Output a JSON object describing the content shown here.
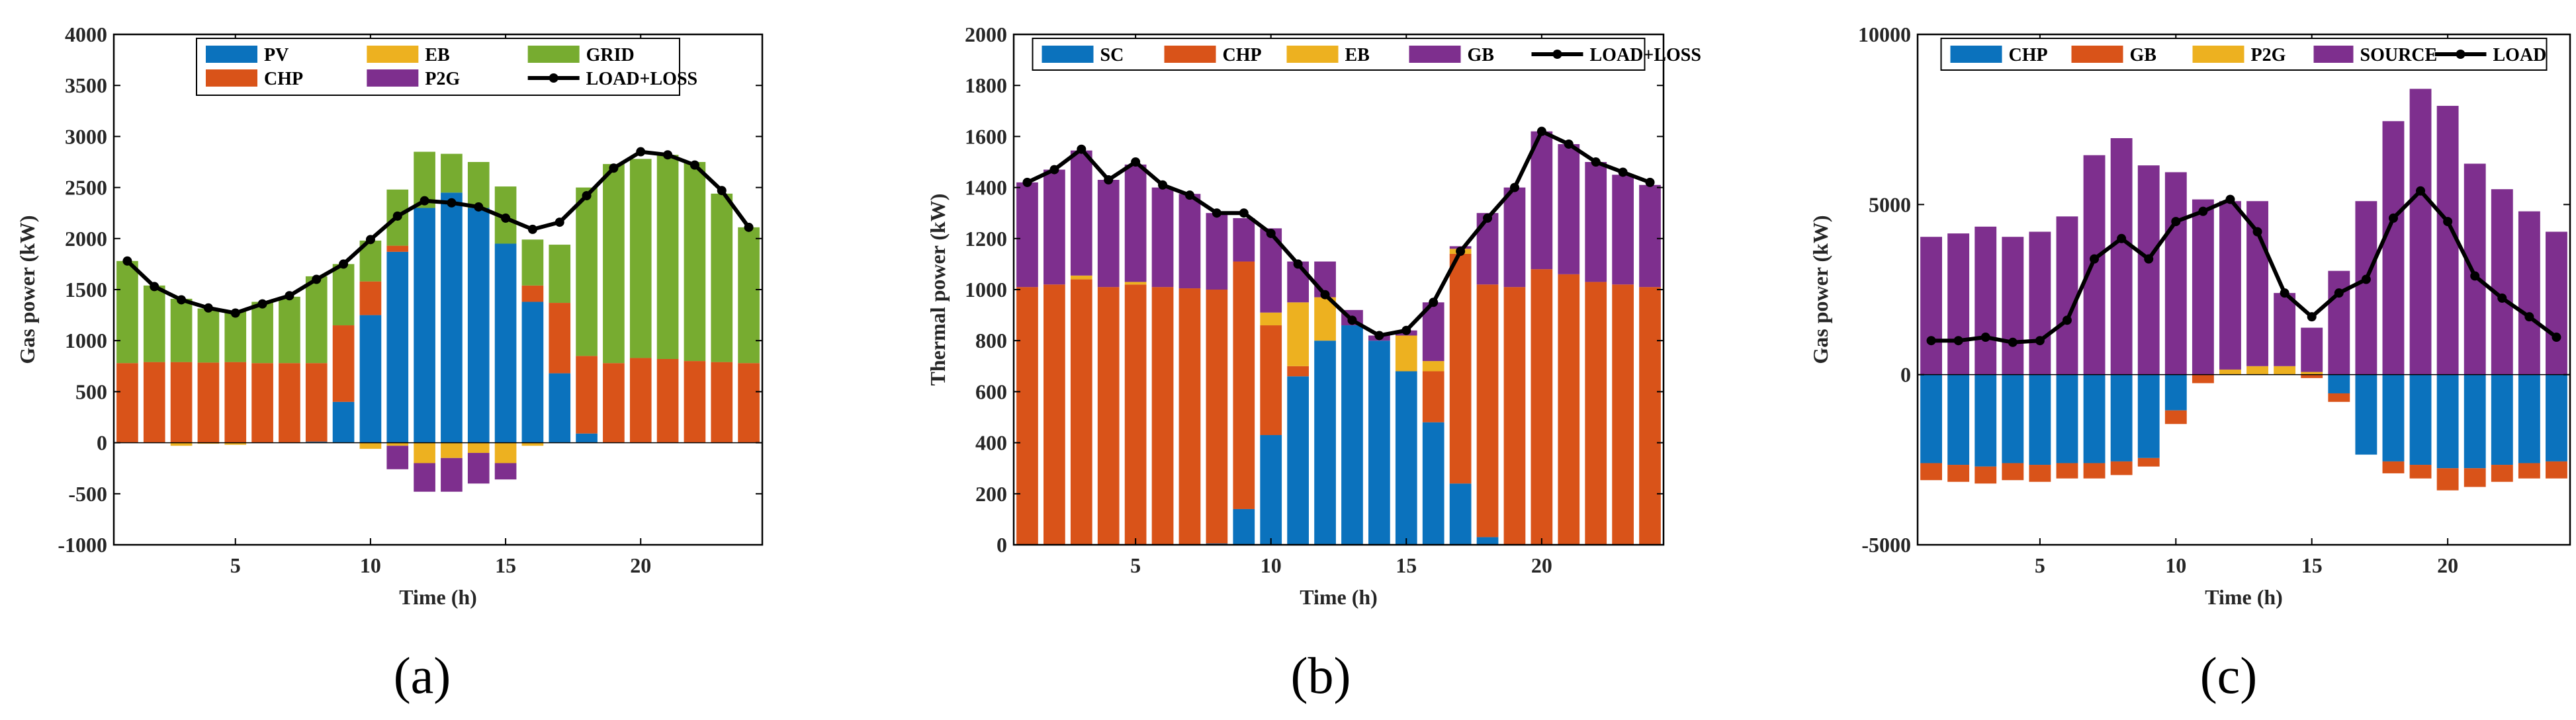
{
  "colors": {
    "PV": "#0b72bd",
    "SC": "#0b72bd",
    "CHP": "#d95319",
    "EB": "#edb120",
    "GRID": "#77ac30",
    "P2G": "#7e2f8e",
    "GB": "#7e2f8e",
    "SOURCE": "#7e2f8e",
    "CHP_c": "#0b72bd",
    "GB_c": "#d95319",
    "P2G_c": "#edb120",
    "line": "#000000"
  },
  "chart_data": [
    {
      "type": "bar",
      "stacked": true,
      "panel_label": "(a)",
      "xlabel": "Time (h)",
      "ylabel": "Gas power (kW)",
      "ylim": [
        -1000,
        4000
      ],
      "yticks": [
        -1000,
        -500,
        0,
        500,
        1000,
        1500,
        2000,
        2500,
        3000,
        3500,
        4000
      ],
      "xticks": [
        5,
        10,
        15,
        20
      ],
      "x": [
        1,
        2,
        3,
        4,
        5,
        6,
        7,
        8,
        9,
        10,
        11,
        12,
        13,
        14,
        15,
        16,
        17,
        18,
        19,
        20,
        21,
        22,
        23,
        24
      ],
      "series": [
        {
          "name": "PV",
          "color_key": "PV",
          "values": [
            0,
            0,
            0,
            0,
            0,
            0,
            0,
            10,
            400,
            1250,
            1870,
            2300,
            2450,
            2300,
            1950,
            1380,
            680,
            90,
            0,
            0,
            0,
            0,
            0,
            0
          ]
        },
        {
          "name": "CHP",
          "color_key": "CHP",
          "values": [
            780,
            790,
            790,
            785,
            790,
            780,
            780,
            770,
            750,
            330,
            60,
            0,
            0,
            0,
            0,
            160,
            690,
            760,
            780,
            830,
            820,
            800,
            790,
            780
          ]
        },
        {
          "name": "EB",
          "color_key": "EB",
          "values": [
            0,
            0,
            -30,
            -10,
            -20,
            0,
            0,
            0,
            0,
            -60,
            -30,
            -200,
            -150,
            -100,
            -200,
            -30,
            0,
            0,
            0,
            0,
            0,
            0,
            0,
            0
          ]
        },
        {
          "name": "GRID",
          "color_key": "GRID",
          "values": [
            1000,
            750,
            620,
            530,
            500,
            600,
            650,
            850,
            600,
            400,
            550,
            550,
            380,
            450,
            560,
            450,
            570,
            1650,
            1950,
            1950,
            2000,
            1950,
            1650,
            1330
          ]
        },
        {
          "name": "P2G",
          "color_key": "P2G",
          "values": [
            0,
            0,
            0,
            0,
            0,
            0,
            0,
            0,
            0,
            0,
            -230,
            -280,
            -330,
            -300,
            -160,
            0,
            0,
            0,
            0,
            0,
            0,
            0,
            0,
            0
          ]
        }
      ],
      "line": {
        "name": "LOAD+LOSS",
        "values": [
          1780,
          1530,
          1400,
          1320,
          1270,
          1360,
          1440,
          1600,
          1750,
          1990,
          2220,
          2370,
          2350,
          2310,
          2200,
          2090,
          2160,
          2420,
          2690,
          2850,
          2820,
          2720,
          2470,
          2110
        ]
      },
      "legend": [
        {
          "label": "PV",
          "kind": "bar",
          "color_key": "PV"
        },
        {
          "label": "EB",
          "kind": "bar",
          "color_key": "EB"
        },
        {
          "label": "GRID",
          "kind": "bar",
          "color_key": "GRID"
        },
        {
          "label": "CHP",
          "kind": "bar",
          "color_key": "CHP"
        },
        {
          "label": "P2G",
          "kind": "bar",
          "color_key": "P2G"
        },
        {
          "label": "LOAD+LOSS",
          "kind": "line"
        }
      ],
      "legend_position": "top-center",
      "legend_columns": 3
    },
    {
      "type": "bar",
      "stacked": true,
      "panel_label": "(b)",
      "xlabel": "Time (h)",
      "ylabel": "Thermal power (kW)",
      "ylim": [
        0,
        2000
      ],
      "yticks": [
        0,
        200,
        400,
        600,
        800,
        1000,
        1200,
        1400,
        1600,
        1800,
        2000
      ],
      "xticks": [
        5,
        10,
        15,
        20
      ],
      "x": [
        1,
        2,
        3,
        4,
        5,
        6,
        7,
        8,
        9,
        10,
        11,
        12,
        13,
        14,
        15,
        16,
        17,
        18,
        19,
        20,
        21,
        22,
        23,
        24
      ],
      "series": [
        {
          "name": "SC",
          "color_key": "SC",
          "values": [
            0,
            0,
            0,
            0,
            0,
            0,
            0,
            5,
            140,
            430,
            660,
            800,
            860,
            800,
            680,
            480,
            240,
            30,
            0,
            0,
            0,
            0,
            0,
            0
          ]
        },
        {
          "name": "CHP",
          "color_key": "CHP",
          "values": [
            1010,
            1020,
            1040,
            1010,
            1020,
            1010,
            1005,
            995,
            970,
            430,
            40,
            0,
            0,
            0,
            0,
            200,
            900,
            990,
            1010,
            1080,
            1060,
            1030,
            1020,
            1010
          ]
        },
        {
          "name": "EB",
          "color_key": "EB",
          "values": [
            0,
            0,
            15,
            0,
            10,
            0,
            0,
            0,
            0,
            50,
            250,
            170,
            0,
            0,
            140,
            40,
            20,
            0,
            0,
            0,
            0,
            0,
            0,
            0
          ]
        },
        {
          "name": "GB",
          "color_key": "GB",
          "values": [
            410,
            450,
            490,
            420,
            460,
            390,
            370,
            300,
            170,
            330,
            160,
            140,
            60,
            20,
            20,
            230,
            10,
            280,
            390,
            540,
            510,
            470,
            430,
            400
          ]
        }
      ],
      "line": {
        "name": "LOAD+LOSS",
        "values": [
          1420,
          1470,
          1550,
          1430,
          1500,
          1410,
          1370,
          1300,
          1300,
          1220,
          1100,
          980,
          880,
          820,
          840,
          950,
          1150,
          1280,
          1400,
          1620,
          1570,
          1500,
          1460,
          1420
        ]
      },
      "legend": [
        {
          "label": "SC",
          "kind": "bar",
          "color_key": "SC"
        },
        {
          "label": "CHP",
          "kind": "bar",
          "color_key": "CHP"
        },
        {
          "label": "EB",
          "kind": "bar",
          "color_key": "EB"
        },
        {
          "label": "GB",
          "kind": "bar",
          "color_key": "GB"
        },
        {
          "label": "LOAD+LOSS",
          "kind": "line"
        }
      ],
      "legend_position": "top-center",
      "legend_columns": 5
    },
    {
      "type": "bar",
      "stacked": true,
      "panel_label": "(c)",
      "xlabel": "Time (h)",
      "ylabel": "Gas power (kW)",
      "ylim": [
        -5000,
        10000
      ],
      "yticks": [
        -5000,
        0,
        5000,
        10000
      ],
      "xticks": [
        5,
        10,
        15,
        20
      ],
      "x": [
        1,
        2,
        3,
        4,
        5,
        6,
        7,
        8,
        9,
        10,
        11,
        12,
        13,
        14,
        15,
        16,
        17,
        18,
        19,
        20,
        21,
        22,
        23,
        24
      ],
      "series": [
        {
          "name": "CHP",
          "color_key": "CHP_c",
          "values": [
            -2600,
            -2650,
            -2700,
            -2600,
            -2650,
            -2600,
            -2600,
            -2550,
            -2450,
            -1050,
            0,
            0,
            0,
            0,
            0,
            -550,
            -2350,
            -2550,
            -2650,
            -2750,
            -2750,
            -2650,
            -2600,
            -2550
          ]
        },
        {
          "name": "GB",
          "color_key": "GB_c",
          "values": [
            -500,
            -500,
            -500,
            -500,
            -500,
            -450,
            -450,
            -400,
            -250,
            -400,
            -250,
            0,
            0,
            0,
            -100,
            -250,
            0,
            -350,
            -400,
            -650,
            -550,
            -500,
            -450,
            -500
          ]
        },
        {
          "name": "P2G",
          "color_key": "P2G_c",
          "values": [
            0,
            0,
            0,
            0,
            0,
            0,
            0,
            0,
            0,
            0,
            0,
            150,
            250,
            250,
            80,
            0,
            0,
            0,
            0,
            0,
            0,
            0,
            0,
            0
          ]
        },
        {
          "name": "SOURCE",
          "color_key": "SOURCE",
          "values": [
            4050,
            4150,
            4350,
            4050,
            4200,
            4650,
            6450,
            6950,
            6150,
            5950,
            5150,
            4950,
            4850,
            2150,
            1300,
            3050,
            5100,
            7450,
            8400,
            7900,
            6200,
            5450,
            4800,
            4200
          ]
        }
      ],
      "line": {
        "name": "LOAD",
        "values": [
          1000,
          1000,
          1100,
          950,
          1000,
          1600,
          3400,
          4000,
          3400,
          4500,
          4800,
          5150,
          4200,
          2400,
          1700,
          2400,
          2800,
          4600,
          5400,
          4500,
          2900,
          2250,
          1700,
          1100
        ]
      },
      "legend": [
        {
          "label": "CHP",
          "kind": "bar",
          "color_key": "CHP_c"
        },
        {
          "label": "GB",
          "kind": "bar",
          "color_key": "GB_c"
        },
        {
          "label": "P2G",
          "kind": "bar",
          "color_key": "P2G_c"
        },
        {
          "label": "SOURCE",
          "kind": "bar",
          "color_key": "SOURCE"
        },
        {
          "label": "LOAD",
          "kind": "line"
        }
      ],
      "legend_position": "top-center",
      "legend_columns": 5
    }
  ]
}
